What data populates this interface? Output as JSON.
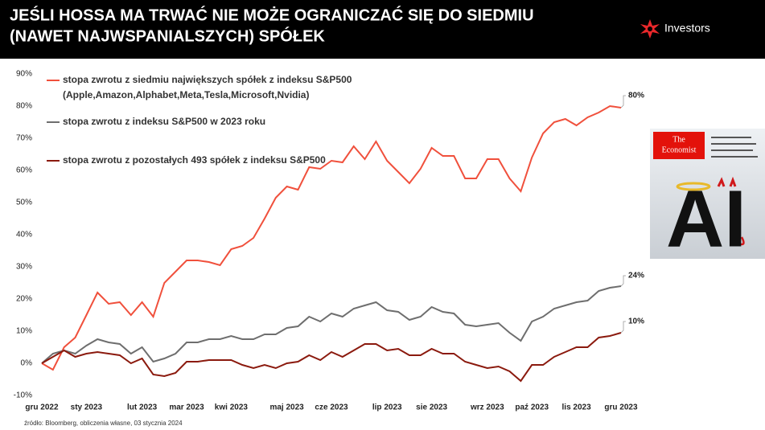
{
  "header": {
    "title": [
      "JEŚLI HOSSA MA TRWAĆ NIE MOŻE OGRANICZAĆ SIĘ DO SIEDMIU",
      "(NAWET NAJWSPANIALSZYCH) SPÓŁEK"
    ],
    "brand": "Investors"
  },
  "cover": {
    "masthead": [
      "The",
      "Economist"
    ],
    "headline": "AI"
  },
  "source": "źródło: Bloomberg, obliczenia własne, 03 stycznia 2024",
  "chart_data": {
    "type": "line",
    "categories": [
      "gru 2022",
      null,
      null,
      null,
      "sty 2023",
      null,
      null,
      null,
      null,
      "lut 2023",
      null,
      null,
      null,
      "mar 2023",
      null,
      null,
      null,
      "kwi 2023",
      null,
      null,
      null,
      null,
      "maj 2023",
      null,
      null,
      null,
      "cze 2023",
      null,
      null,
      null,
      null,
      "lip 2023",
      null,
      null,
      null,
      "sie 2023",
      null,
      null,
      null,
      null,
      "wrz 2023",
      null,
      null,
      null,
      "paź 2023",
      null,
      null,
      null,
      "lis 2023",
      null,
      null,
      null,
      "gru 2023"
    ],
    "series": [
      {
        "name": "stopa zwrotu z siedmiu największych spółek z indeksu S&P500",
        "legend_note": "(Apple,Amazon,Alphabet,Meta,Tesla,Microsoft,Nvidia)",
        "color": "#f0503c",
        "end_label": "80%",
        "values": [
          0,
          -2,
          5,
          8,
          15,
          22,
          18.5,
          19,
          15,
          19,
          14.5,
          25,
          28.5,
          32,
          32,
          31.5,
          30.5,
          35.5,
          36.5,
          39,
          45,
          51.5,
          55,
          54,
          61,
          60.5,
          63,
          62.5,
          67.5,
          63.5,
          69,
          63,
          59.5,
          56,
          60.5,
          67,
          64.5,
          64.5,
          57.5,
          57.5,
          63.5,
          63.5,
          57.5,
          53.5,
          64,
          71.5,
          75,
          76,
          74,
          76.5,
          78,
          80,
          79.5
        ]
      },
      {
        "name": "stopa zwrotu z indeksu S&P500 w 2023 roku",
        "color": "#6e6e6e",
        "end_label": "24%",
        "values": [
          0,
          3,
          4,
          3,
          5.5,
          7.5,
          6.5,
          6,
          3,
          5,
          0.5,
          1.5,
          3,
          6.5,
          6.5,
          7.5,
          7.5,
          8.5,
          7.5,
          7.5,
          9,
          9,
          11,
          11.5,
          14.5,
          13,
          15.5,
          14.5,
          17,
          18,
          19,
          16.5,
          16,
          13.5,
          14.5,
          17.5,
          16,
          15.5,
          12,
          11.5,
          12,
          12.5,
          9.5,
          7,
          13,
          14.5,
          17,
          18,
          19,
          19.5,
          22.5,
          23.5,
          24
        ]
      },
      {
        "name": "stopa zwrotu z pozostałych 493 spółek z indeksu S&P500",
        "color": "#8b1a0e",
        "end_label": "10%",
        "values": [
          0,
          2,
          4,
          2,
          3,
          3.5,
          3,
          2.5,
          0,
          1.5,
          -3.5,
          -4,
          -3,
          0.5,
          0.5,
          1,
          1,
          1,
          -0.5,
          -1.5,
          -0.5,
          -1.5,
          0,
          0.5,
          2.5,
          1,
          3.5,
          2,
          4,
          6,
          6,
          4,
          4.5,
          2.5,
          2.5,
          4.5,
          3,
          3,
          0.5,
          -0.5,
          -1.5,
          -1,
          -2.5,
          -5.5,
          -0.5,
          -0.5,
          2,
          3.5,
          5,
          5,
          8,
          8.5,
          9.5
        ]
      }
    ],
    "ylim": [
      -10,
      90
    ],
    "yticks": [
      {
        "value": -10,
        "label": "-10%"
      },
      {
        "value": 0,
        "label": "0%"
      },
      {
        "value": 10,
        "label": "10%"
      },
      {
        "value": 20,
        "label": "20%"
      },
      {
        "value": 30,
        "label": "30%"
      },
      {
        "value": 40,
        "label": "40%"
      },
      {
        "value": 50,
        "label": "50%"
      },
      {
        "value": 60,
        "label": "60%"
      },
      {
        "value": 70,
        "label": "70%"
      },
      {
        "value": 80,
        "label": "80%"
      },
      {
        "value": 90,
        "label": "90%"
      }
    ],
    "grid": false
  }
}
